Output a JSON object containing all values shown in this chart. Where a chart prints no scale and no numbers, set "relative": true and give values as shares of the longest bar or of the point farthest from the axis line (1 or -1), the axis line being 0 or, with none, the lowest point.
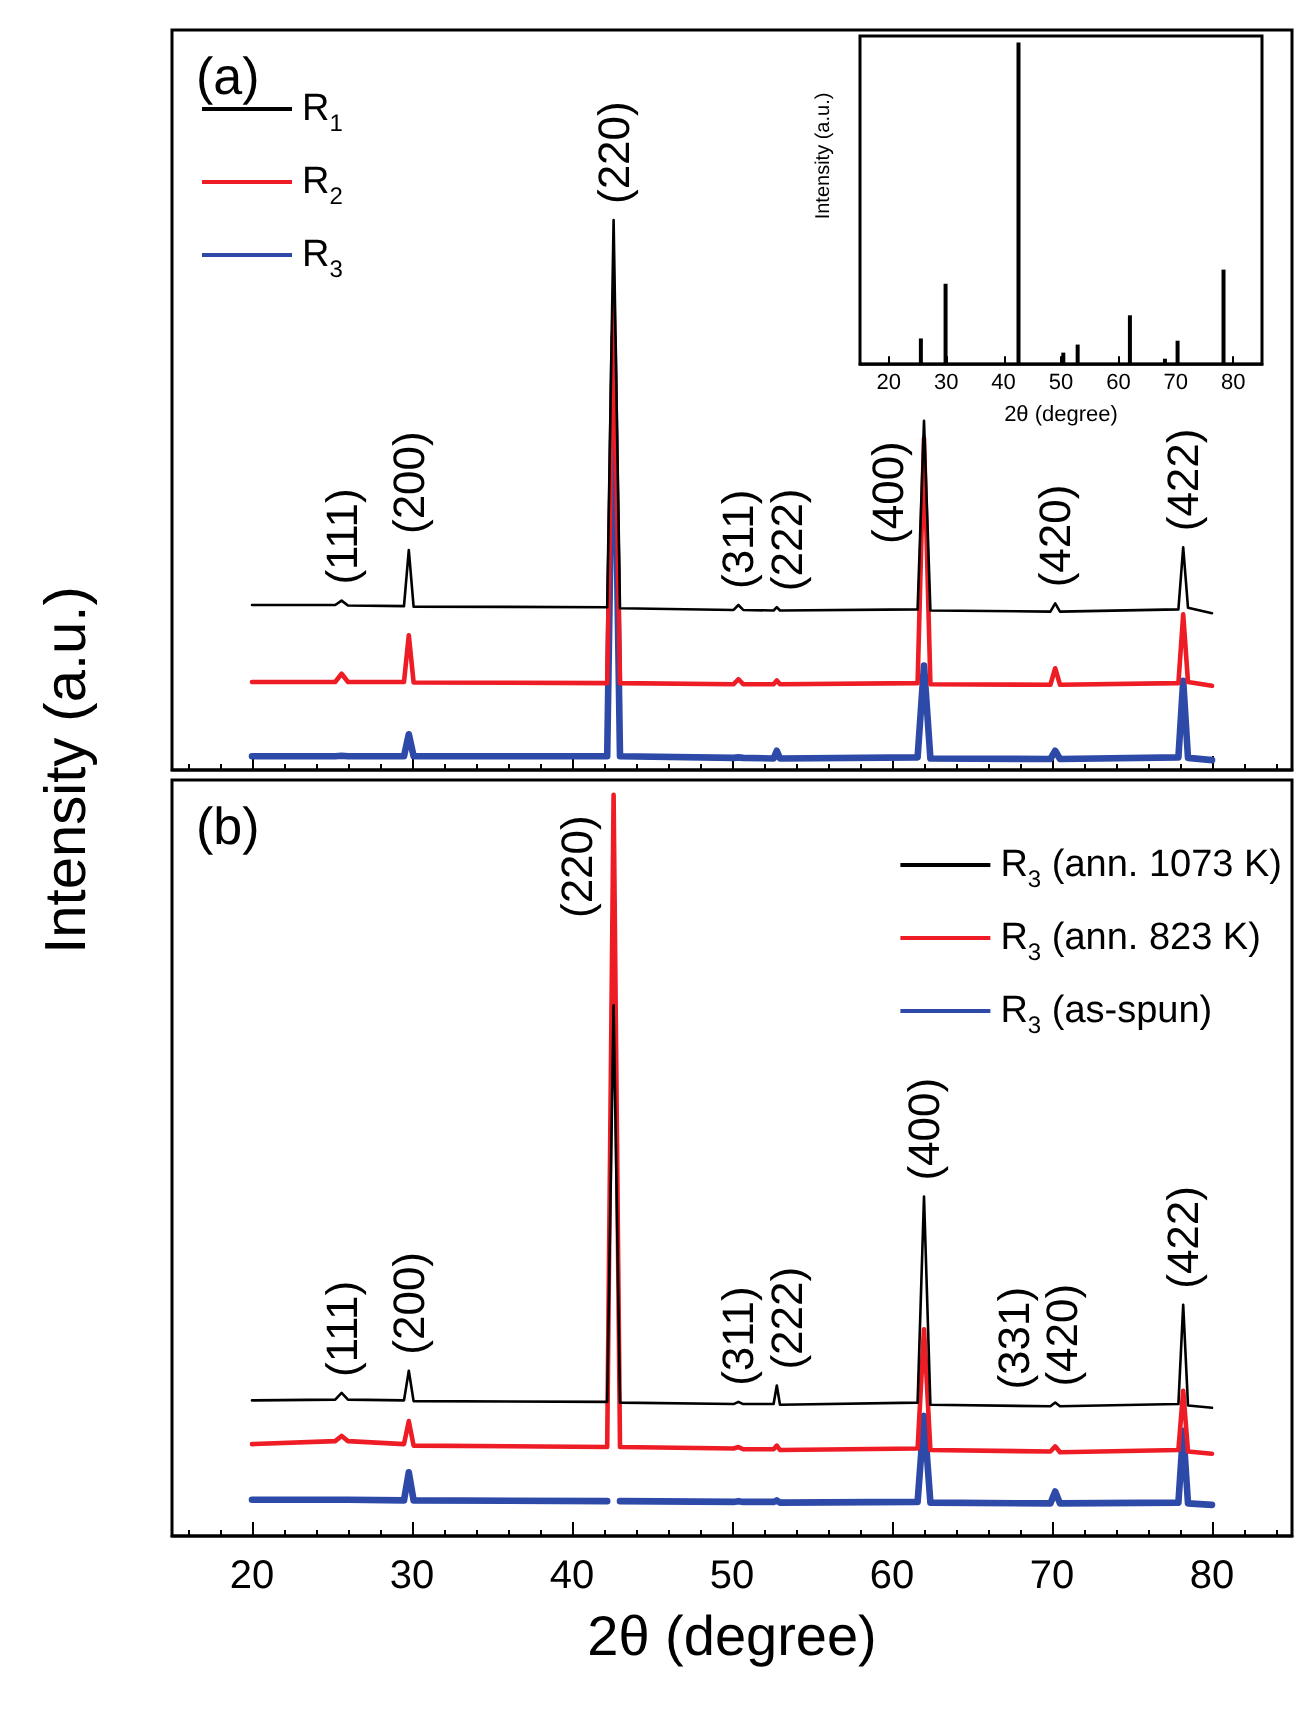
{
  "chart_data": [
    {
      "type": "line",
      "ylabel": "Intensity (a.u.)",
      "relative": true,
      "tick_labels": false,
      "legend": "top left",
      "grid": false,
      "marker": "none",
      "line_style": "solid",
      "xlim": [
        15,
        85
      ],
      "xticks": [
        20,
        30,
        40,
        50,
        60,
        70,
        80
      ],
      "x": [
        20,
        25.2,
        25.6,
        26.0,
        29.5,
        29.8,
        30.1,
        42.2,
        42.6,
        43.0,
        50.1,
        50.4,
        50.7,
        52.6,
        52.8,
        53.0,
        61.6,
        62.0,
        62.4,
        69.9,
        70.2,
        70.5,
        77.9,
        78.2,
        78.5,
        80
      ],
      "series": [
        {
          "name": "R$_{1}$",
          "color": "#000000",
          "values": [
            0.3,
            0.3,
            0.308,
            0.299,
            0.298,
            0.4,
            0.297,
            0.296,
            1.0,
            0.294,
            0.291,
            0.3,
            0.291,
            0.29,
            0.296,
            0.29,
            0.292,
            0.635,
            0.29,
            0.288,
            0.303,
            0.288,
            0.292,
            0.405,
            0.295,
            0.285
          ]
        },
        {
          "name": "R$_{2}$",
          "color": "#ee1c25",
          "values": [
            0.16,
            0.16,
            0.175,
            0.16,
            0.16,
            0.245,
            0.159,
            0.158,
            0.855,
            0.158,
            0.156,
            0.165,
            0.156,
            0.156,
            0.163,
            0.156,
            0.158,
            0.603,
            0.156,
            0.155,
            0.185,
            0.155,
            0.158,
            0.283,
            0.16,
            0.153
          ]
        },
        {
          "name": "R$_{3}$",
          "color": "#2e4aa8",
          "values": [
            0.025,
            0.025,
            0.026,
            0.025,
            0.025,
            0.065,
            0.025,
            0.025,
            0.787,
            0.025,
            0.022,
            0.023,
            0.022,
            0.021,
            0.035,
            0.021,
            0.023,
            0.19,
            0.021,
            0.02,
            0.035,
            0.02,
            0.023,
            0.162,
            0.022,
            0.018
          ]
        }
      ],
      "annotations": [
        "(a)",
        {
          "text": "(111)",
          "x": 25.6,
          "y": 0.308
        },
        {
          "text": "(200)",
          "x": 29.8,
          "y": 0.4
        },
        {
          "text": "(220)",
          "x": 42.6,
          "y": 1.0
        },
        {
          "text": "(311)",
          "x": 50.4,
          "y": 0.3
        },
        {
          "text": "(222)",
          "x": 52.8,
          "y": 0.296
        },
        {
          "text": "(400)",
          "x": 62.0,
          "y": 0.635
        },
        {
          "text": "(420)",
          "x": 70.2,
          "y": 0.303
        },
        {
          "text": "(422)",
          "x": 78.2,
          "y": 0.405
        }
      ]
    },
    {
      "type": "line",
      "xlabel": "2θ (degree)",
      "relative": true,
      "tick_labels": "x",
      "legend": "top right",
      "grid": false,
      "marker": "none",
      "line_style": "solid",
      "xlim": [
        15,
        85
      ],
      "xticks": [
        20,
        30,
        40,
        50,
        60,
        70,
        80
      ],
      "x": [
        20,
        25.2,
        25.6,
        26.0,
        29.5,
        29.8,
        30.1,
        42.2,
        42.6,
        43.0,
        50.1,
        50.4,
        50.7,
        52.6,
        52.8,
        53.0,
        61.6,
        62.0,
        62.4,
        69.9,
        70.2,
        70.5,
        77.9,
        78.2,
        78.5,
        80
      ],
      "series": [
        {
          "name": "R$_{3}$ (ann. 1073 K)",
          "color": "#000000",
          "values": [
            0.183,
            0.184,
            0.193,
            0.184,
            0.183,
            0.223,
            0.182,
            0.181,
            0.716,
            0.18,
            0.178,
            0.181,
            0.178,
            0.178,
            0.203,
            0.177,
            0.18,
            0.458,
            0.177,
            0.175,
            0.18,
            0.175,
            0.178,
            0.312,
            0.176,
            0.173
          ]
        },
        {
          "name": "R$_{3}$ (ann. 823 K)",
          "color": "#ee1c25",
          "values": [
            0.124,
            0.128,
            0.135,
            0.128,
            0.124,
            0.155,
            0.122,
            0.12,
            1.0,
            0.12,
            0.118,
            0.12,
            0.117,
            0.117,
            0.122,
            0.116,
            0.118,
            0.279,
            0.116,
            0.114,
            0.121,
            0.113,
            0.116,
            0.196,
            0.114,
            0.111
          ]
        },
        {
          "name": "R$_{3}$ (as-spun)",
          "color": "#2e4aa8",
          "values": [
            0.049,
            0.049,
            0.049,
            0.049,
            0.048,
            0.086,
            0.048,
            0.047,
            null,
            0.047,
            0.046,
            0.047,
            0.046,
            0.046,
            0.048,
            0.045,
            0.046,
            0.162,
            0.045,
            0.044,
            0.06,
            0.044,
            0.045,
            0.142,
            0.044,
            0.042
          ]
        }
      ],
      "annotations": [
        "(b)",
        {
          "text": "(111)",
          "x": 25.6,
          "y": 0.193
        },
        {
          "text": "(200)",
          "x": 29.8,
          "y": 0.223
        },
        {
          "text": "(220)",
          "x": 42.6,
          "y": 1.0
        },
        {
          "text": "(311)",
          "x": 50.4,
          "y": 0.181
        },
        {
          "text": "(222)",
          "x": 52.8,
          "y": 0.203
        },
        {
          "text": "(400)",
          "x": 62.0,
          "y": 0.458
        },
        {
          "text": "(331)",
          "x": 67.6,
          "y": 0.176
        },
        {
          "text": "(420)",
          "x": 70.2,
          "y": 0.18
        },
        {
          "text": "(422)",
          "x": 78.2,
          "y": 0.312
        }
      ]
    },
    {
      "type": "bar",
      "xlabel": "2θ (degree)",
      "ylabel": "Intensity (a.u.)",
      "relative": true,
      "tick_labels": "x",
      "grid": false,
      "xlim": [
        15,
        85
      ],
      "xticks": [
        20,
        30,
        40,
        50,
        60,
        70,
        80
      ],
      "x": [
        25.6,
        29.9,
        42.6,
        50.4,
        52.9,
        62.0,
        68.1,
        70.3,
        78.3
      ],
      "values": [
        0.08,
        0.25,
        1.0,
        0.036,
        0.061,
        0.152,
        0.017,
        0.073,
        0.294
      ],
      "color": "#000000"
    }
  ]
}
